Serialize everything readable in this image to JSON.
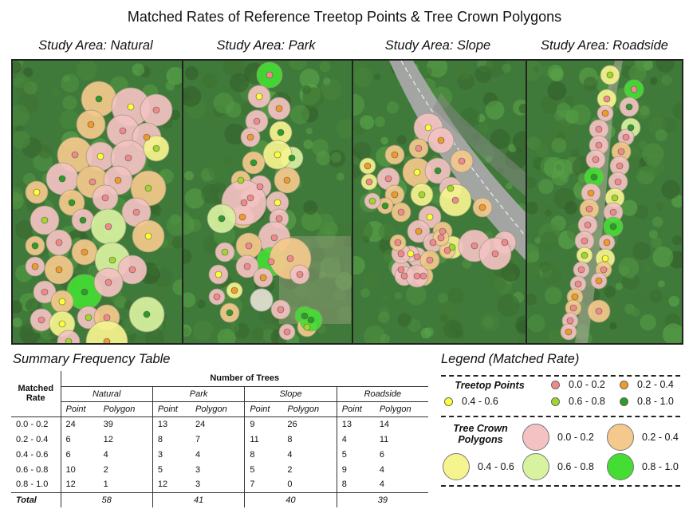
{
  "title": "Matched Rates of Reference Treetop Points & Tree Crown Polygons",
  "areas": [
    {
      "title": "Study Area: Natural"
    },
    {
      "title": "Study Area: Park"
    },
    {
      "title": "Study Area: Slope"
    },
    {
      "title": "Study Area: Roadside"
    }
  ],
  "colors": {
    "point": {
      "0.0-0.2": "#f08a8a",
      "0.2-0.4": "#f09a2a",
      "0.4-0.6": "#ffff33",
      "0.6-0.8": "#a0d82a",
      "0.8-1.0": "#2f9a2a"
    },
    "polygon": {
      "0.0-0.2": "#f4c2c2",
      "0.2-0.4": "#f5c98c",
      "0.4-0.6": "#f6f48e",
      "0.6-0.8": "#d8f2a0",
      "0.8-1.0": "#44dd33"
    },
    "forest": "#3f7a3a"
  },
  "table": {
    "title": "Summary Frequency Table",
    "matched_rate_header": "Matched Rate",
    "number_header": "Number of Trees",
    "groups": [
      "Natural",
      "Park",
      "Slope",
      "Roadside"
    ],
    "subheaders": [
      "Point",
      "Polygon"
    ],
    "rows": [
      {
        "rate": "0.0 - 0.2",
        "values": [
          "24",
          "39",
          "13",
          "24",
          "9",
          "26",
          "13",
          "14"
        ]
      },
      {
        "rate": "0.2 - 0.4",
        "values": [
          "6",
          "12",
          "8",
          "7",
          "11",
          "8",
          "4",
          "11"
        ]
      },
      {
        "rate": "0.4 - 0.6",
        "values": [
          "6",
          "4",
          "3",
          "4",
          "8",
          "4",
          "5",
          "6"
        ]
      },
      {
        "rate": "0.6 - 0.8",
        "values": [
          "10",
          "2",
          "5",
          "3",
          "5",
          "2",
          "9",
          "4"
        ]
      },
      {
        "rate": "0.8 - 1.0",
        "values": [
          "12",
          "1",
          "12",
          "3",
          "7",
          "0",
          "8",
          "4"
        ]
      }
    ],
    "total_label": "Total",
    "totals": [
      "58",
      "41",
      "40",
      "39"
    ]
  },
  "legend": {
    "title": "Legend (Matched Rate)",
    "points_title": "Treetop Points",
    "polygons_title": "Tree Crown Polygons",
    "ranges": [
      "0.0 - 0.2",
      "0.2 - 0.4",
      "0.4 - 0.6",
      "0.6 - 0.8",
      "0.8 - 1.0"
    ]
  }
}
